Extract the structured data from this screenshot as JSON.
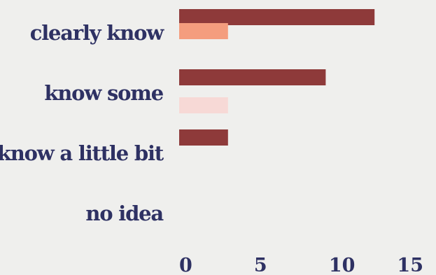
{
  "chart_data": {
    "type": "bar",
    "orientation": "horizontal",
    "categories": [
      "clearly know",
      "know some",
      "know a little bit",
      "no idea"
    ],
    "series": [
      {
        "color": "#8e3a3a",
        "values": [
          12,
          9,
          3,
          0
        ]
      },
      {
        "color": "#f49d7e",
        "values": [
          3,
          0,
          0,
          0
        ]
      },
      {
        "color": "#f7d9d6",
        "values": [
          0,
          3,
          0,
          0
        ]
      }
    ],
    "xlim": [
      0,
      15
    ],
    "xticks": [
      0,
      5,
      10,
      15
    ],
    "grid": false,
    "legend": false,
    "title": "",
    "xlabel": "",
    "ylabel": ""
  }
}
